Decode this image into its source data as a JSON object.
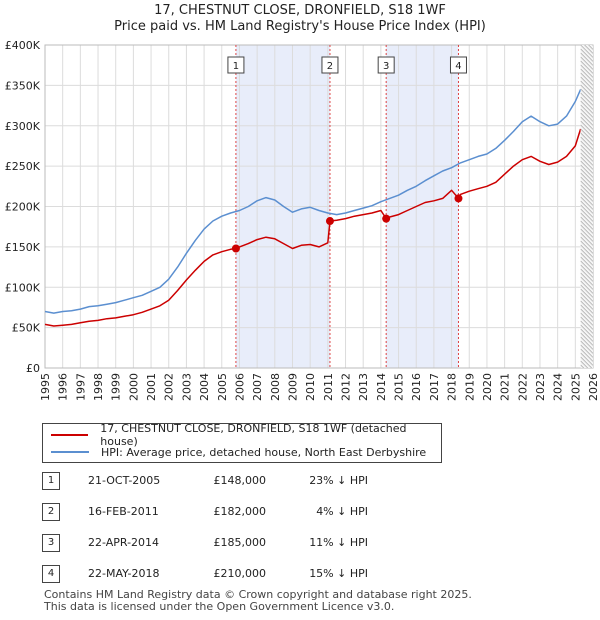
{
  "title": {
    "line1": "17, CHESTNUT CLOSE, DRONFIELD, S18 1WF",
    "line2": "Price paid vs. HM Land Registry's House Price Index (HPI)"
  },
  "legend": {
    "property_label": "17, CHESTNUT CLOSE, DRONFIELD, S18 1WF (detached house)",
    "hpi_label": "HPI: Average price, detached house, North East Derbyshire"
  },
  "sales": [
    {
      "num": "1",
      "date": "21-OCT-2005",
      "price": "£148,000",
      "hpi": "23% ↓ HPI"
    },
    {
      "num": "2",
      "date": "16-FEB-2011",
      "price": "£182,000",
      "hpi": "4% ↓ HPI"
    },
    {
      "num": "3",
      "date": "22-APR-2014",
      "price": "£185,000",
      "hpi": "11% ↓ HPI"
    },
    {
      "num": "4",
      "date": "22-MAY-2018",
      "price": "£210,000",
      "hpi": "15% ↓ HPI"
    }
  ],
  "footer": {
    "line1": "Contains HM Land Registry data © Crown copyright and database right 2025.",
    "line2": "This data is licensed under the Open Government Licence v3.0."
  },
  "colors": {
    "property": "#cc0000",
    "hpi": "#5b8fd0",
    "shade": "#e8edfa",
    "grid": "#dcdcdc",
    "marker_line": "#dd4444"
  },
  "chart_data": {
    "type": "line",
    "title": "Price paid vs. HM Land Registry's House Price Index (HPI)",
    "xlabel": "",
    "ylabel": "",
    "xlim": [
      1995,
      2026
    ],
    "ylim": [
      0,
      400000
    ],
    "x_ticks": [
      1995,
      1996,
      1997,
      1998,
      1999,
      2000,
      2001,
      2002,
      2003,
      2004,
      2005,
      2006,
      2007,
      2008,
      2009,
      2010,
      2011,
      2012,
      2013,
      2014,
      2015,
      2016,
      2017,
      2018,
      2019,
      2020,
      2021,
      2022,
      2023,
      2024,
      2025,
      2026
    ],
    "y_ticks": [
      0,
      50000,
      100000,
      150000,
      200000,
      250000,
      300000,
      350000,
      400000
    ],
    "y_tick_labels": [
      "£0",
      "£50K",
      "£100K",
      "£150K",
      "£200K",
      "£250K",
      "£300K",
      "£350K",
      "£400K"
    ],
    "shaded_ranges": [
      [
        2005.8,
        2011.12
      ],
      [
        2014.3,
        2018.39
      ]
    ],
    "series": [
      {
        "name": "HPI: Average price, detached house, North East Derbyshire",
        "x": [
          1995.0,
          1995.5,
          1996.0,
          1996.5,
          1997.0,
          1997.5,
          1998.0,
          1998.5,
          1999.0,
          1999.5,
          2000.0,
          2000.5,
          2001.0,
          2001.5,
          2002.0,
          2002.5,
          2003.0,
          2003.5,
          2004.0,
          2004.5,
          2005.0,
          2005.5,
          2006.0,
          2006.5,
          2007.0,
          2007.5,
          2008.0,
          2008.5,
          2009.0,
          2009.5,
          2010.0,
          2010.5,
          2011.0,
          2011.5,
          2012.0,
          2012.5,
          2013.0,
          2013.5,
          2014.0,
          2014.5,
          2015.0,
          2015.5,
          2016.0,
          2016.5,
          2017.0,
          2017.5,
          2018.0,
          2018.5,
          2019.0,
          2019.5,
          2020.0,
          2020.5,
          2021.0,
          2021.5,
          2022.0,
          2022.5,
          2023.0,
          2023.5,
          2024.0,
          2024.5,
          2025.0,
          2025.3
        ],
        "y": [
          70000,
          68000,
          70000,
          71000,
          73000,
          76000,
          77000,
          79000,
          81000,
          84000,
          87000,
          90000,
          95000,
          100000,
          110000,
          125000,
          142000,
          158000,
          172000,
          182000,
          188000,
          192000,
          195000,
          200000,
          207000,
          211000,
          208000,
          200000,
          193000,
          197000,
          199000,
          195000,
          192000,
          190000,
          192000,
          195000,
          198000,
          201000,
          206000,
          210000,
          214000,
          220000,
          225000,
          232000,
          238000,
          244000,
          248000,
          254000,
          258000,
          262000,
          265000,
          272000,
          282000,
          293000,
          305000,
          312000,
          305000,
          300000,
          302000,
          312000,
          330000,
          345000
        ]
      },
      {
        "name": "17, CHESTNUT CLOSE, DRONFIELD, S18 1WF (detached house)",
        "x": [
          1995.0,
          1995.5,
          1996.0,
          1996.5,
          1997.0,
          1997.5,
          1998.0,
          1998.5,
          1999.0,
          1999.5,
          2000.0,
          2000.5,
          2001.0,
          2001.5,
          2002.0,
          2002.5,
          2003.0,
          2003.5,
          2004.0,
          2004.5,
          2005.0,
          2005.5,
          2005.8,
          2006.0,
          2006.5,
          2007.0,
          2007.5,
          2008.0,
          2008.5,
          2009.0,
          2009.5,
          2010.0,
          2010.5,
          2011.0,
          2011.12,
          2011.5,
          2012.0,
          2012.5,
          2013.0,
          2013.5,
          2014.0,
          2014.3,
          2014.5,
          2015.0,
          2015.5,
          2016.0,
          2016.5,
          2017.0,
          2017.5,
          2018.0,
          2018.39,
          2018.5,
          2019.0,
          2019.5,
          2020.0,
          2020.5,
          2021.0,
          2021.5,
          2022.0,
          2022.5,
          2023.0,
          2023.5,
          2024.0,
          2024.5,
          2025.0,
          2025.3
        ],
        "y": [
          54000,
          52000,
          53000,
          54000,
          56000,
          58000,
          59000,
          61000,
          62000,
          64000,
          66000,
          69000,
          73000,
          77000,
          84000,
          96000,
          109000,
          121000,
          132000,
          140000,
          144000,
          147000,
          148000,
          150000,
          154000,
          159000,
          162000,
          160000,
          154000,
          148000,
          152000,
          153000,
          150000,
          155000,
          182000,
          183000,
          185000,
          188000,
          190000,
          192000,
          195000,
          185000,
          187000,
          190000,
          195000,
          200000,
          205000,
          207000,
          210000,
          220000,
          210000,
          215000,
          219000,
          222000,
          225000,
          230000,
          240000,
          250000,
          258000,
          262000,
          256000,
          252000,
          255000,
          262000,
          275000,
          296000
        ]
      }
    ],
    "sales_markers": [
      {
        "label": "1",
        "x": 2005.8,
        "y": 148000
      },
      {
        "label": "2",
        "x": 2011.12,
        "y": 182000
      },
      {
        "label": "3",
        "x": 2014.3,
        "y": 185000
      },
      {
        "label": "4",
        "x": 2018.39,
        "y": 210000
      }
    ]
  }
}
